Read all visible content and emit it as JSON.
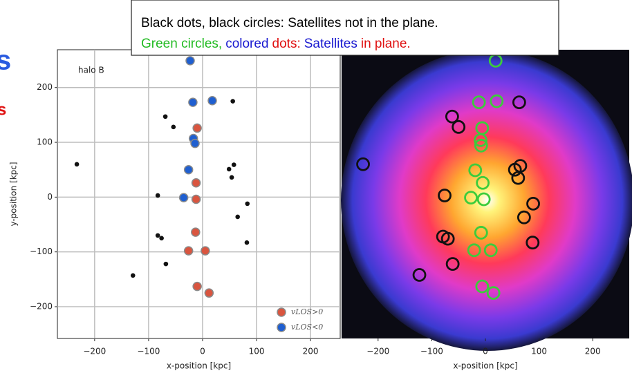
{
  "chart_data": [
    {
      "type": "scatter",
      "annotation": "halo B",
      "xlabel": "x-position [kpc]",
      "ylabel": "y-position [kpc]",
      "xlim": [
        -269,
        255
      ],
      "ylim": [
        -258,
        269
      ],
      "xticks": [
        {
          "value": -200,
          "label": "−200"
        },
        {
          "value": -100,
          "label": "−100"
        },
        0,
        100,
        200
      ],
      "yticks": [
        {
          "value": -200,
          "label": "−200"
        },
        {
          "value": -100,
          "label": "−100"
        },
        0,
        100,
        200
      ],
      "grid": true,
      "legend": "lower right",
      "series": [
        {
          "marker": "dot",
          "color": "#111111",
          "x": [
            -233,
            -69,
            -54,
            56,
            -129,
            -68,
            -83,
            -83,
            -76,
            49,
            58,
            54,
            83,
            65,
            82
          ],
          "y": [
            60,
            147,
            128,
            175,
            -143,
            -122,
            3,
            -70,
            -75,
            51,
            59,
            36,
            -12,
            -36,
            -83
          ]
        },
        {
          "name": "vLOS>0",
          "marker": "disc",
          "color": "#d9553f",
          "x": [
            -10,
            -12,
            -12,
            -13,
            -26,
            5,
            -10,
            12
          ],
          "y": [
            126,
            26,
            -4,
            -64,
            -98,
            -98,
            -163,
            -175
          ]
        },
        {
          "name": "vLOS<0",
          "marker": "disc",
          "color": "#1f5fd0",
          "x": [
            -23,
            -18,
            18,
            -17,
            -14,
            -26,
            -35
          ],
          "y": [
            249,
            173,
            176,
            107,
            98,
            50,
            -1
          ]
        }
      ]
    },
    {
      "type": "image-scatter",
      "xlabel": "x-position [kpc]",
      "xlim": [
        -268,
        268
      ],
      "ylim": [
        -258,
        269
      ],
      "xticks": [
        {
          "value": -200,
          "label": "−200"
        },
        {
          "value": -100,
          "label": "−100"
        },
        0,
        100,
        200
      ],
      "series": [
        {
          "marker": "ring",
          "color": "#3ccc3c",
          "x": [
            19,
            -12,
            21,
            -6,
            -9,
            -8,
            -19,
            -5,
            -27,
            -3,
            -8,
            -21,
            10,
            -6,
            15
          ],
          "y": [
            249,
            173,
            175,
            126,
            104,
            94,
            49,
            26,
            -1,
            -4,
            -65,
            -97,
            -97,
            -163,
            -175
          ]
        },
        {
          "marker": "ring",
          "color": "#111111",
          "x": [
            -228,
            -62,
            -50,
            63,
            -123,
            -61,
            -76,
            -79,
            -70,
            55,
            65,
            61,
            89,
            72,
            88
          ],
          "y": [
            60,
            147,
            128,
            173,
            -142,
            -122,
            3,
            -72,
            -76,
            50,
            57,
            35,
            -12,
            -37,
            -83
          ]
        }
      ]
    }
  ],
  "overlay": {
    "line1": "Black dots, black circles: Satellites not in the plane.",
    "line2": [
      {
        "text": "Green circles,",
        "color": "#22bb22"
      },
      {
        "text": "colored",
        "color": "#1a1ad0"
      },
      {
        "text": "dots:",
        "color": "#e01010"
      },
      {
        "text": "Satellites",
        "color": "#1a1ad0"
      },
      {
        "text": "in plane.",
        "color": "#e01010"
      }
    ]
  },
  "edge_text": [
    {
      "text": "s",
      "color": "#2a5be0"
    },
    {
      "text": "s",
      "color": "#e01010"
    }
  ]
}
